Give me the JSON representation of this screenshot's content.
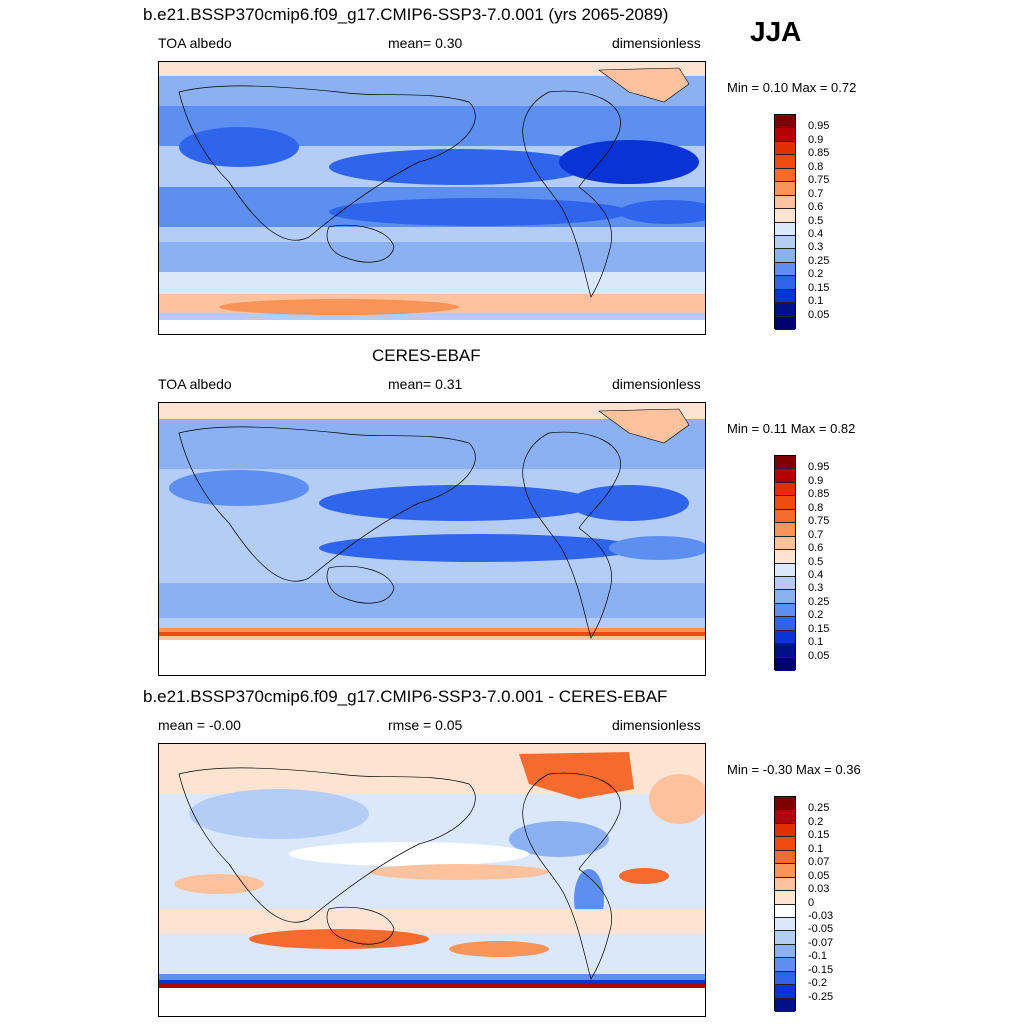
{
  "season": "JJA",
  "panels": [
    {
      "title": "b.e21.BSSP370cmip6.f09_g17.CMIP6-SSP3-7.0.001 (yrs 2065-2089)",
      "left_label": "TOA albedo",
      "center_label": "mean=   0.30",
      "right_label": "dimensionless",
      "minmax": "Min =   0.10 Max =   0.72",
      "colorbar_labels": [
        "0.95",
        "0.9",
        "0.85",
        "0.8",
        "0.75",
        "0.7",
        "0.6",
        "0.5",
        "0.4",
        "0.3",
        "0.25",
        "0.2",
        "0.15",
        "0.1",
        "0.05"
      ],
      "colorbar_colors": [
        "#7f0000",
        "#b30000",
        "#e03000",
        "#f04a10",
        "#f56b2d",
        "#f99458",
        "#fcc29e",
        "#fde4d2",
        "#dbe8fb",
        "#b3cdf7",
        "#8cb1f2",
        "#5c8ff0",
        "#2f64ed",
        "#0a33d6",
        "#00108a",
        "#000070"
      ]
    },
    {
      "title": "CERES-EBAF",
      "left_label": "TOA albedo",
      "center_label": "mean=   0.31",
      "right_label": "dimensionless",
      "minmax": "Min =   0.11 Max =   0.82",
      "colorbar_labels": [
        "0.95",
        "0.9",
        "0.85",
        "0.8",
        "0.75",
        "0.7",
        "0.6",
        "0.5",
        "0.4",
        "0.3",
        "0.25",
        "0.2",
        "0.15",
        "0.1",
        "0.05"
      ],
      "colorbar_colors": [
        "#7f0000",
        "#b30000",
        "#e03000",
        "#f04a10",
        "#f56b2d",
        "#f99458",
        "#fcc29e",
        "#fde4d2",
        "#dbe8fb",
        "#b3cdf7",
        "#8cb1f2",
        "#5c8ff0",
        "#2f64ed",
        "#0a33d6",
        "#00108a",
        "#000070"
      ]
    },
    {
      "title": "b.e21.BSSP370cmip6.f09_g17.CMIP6-SSP3-7.0.001 - CERES-EBAF",
      "left_label": "mean =  -0.00",
      "center_label": "rmse =   0.05",
      "right_label": "dimensionless",
      "minmax": "Min =  -0.30 Max =   0.36",
      "colorbar_labels": [
        "0.25",
        "0.2",
        "0.15",
        "0.1",
        "0.07",
        "0.05",
        "0.03",
        "0",
        "-0.03",
        "-0.05",
        "-0.07",
        "-0.1",
        "-0.15",
        "-0.2",
        "-0.25"
      ],
      "colorbar_colors": [
        "#7f0000",
        "#b30000",
        "#e03000",
        "#f04a10",
        "#f56b2d",
        "#f99458",
        "#fcc29e",
        "#fde4d2",
        "#ffffff",
        "#dbe8fb",
        "#b3cdf7",
        "#8cb1f2",
        "#5c8ff0",
        "#2f64ed",
        "#0a33d6",
        "#00108a"
      ]
    }
  ]
}
